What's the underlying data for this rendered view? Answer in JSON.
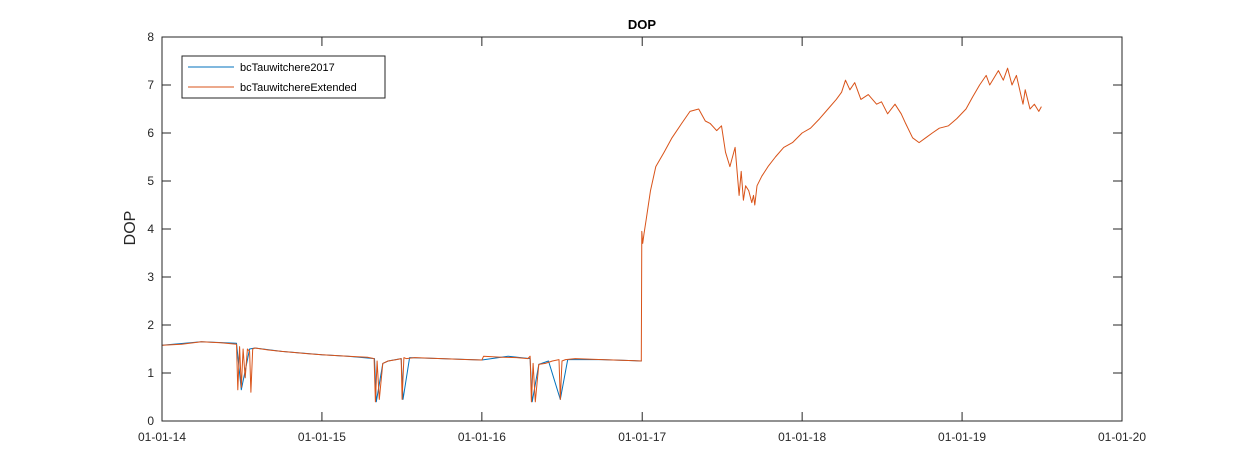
{
  "chart_data": {
    "type": "line",
    "title": "DOP",
    "xlabel": "",
    "ylabel": "DOP",
    "x_ticks": [
      "01-01-14",
      "01-01-15",
      "01-01-16",
      "01-01-17",
      "01-01-18",
      "01-01-19",
      "01-01-20"
    ],
    "xlim": [
      "01-01-14",
      "01-01-20"
    ],
    "ylim": [
      0,
      8
    ],
    "y_ticks": [
      "0",
      "1",
      "2",
      "3",
      "4",
      "5",
      "6",
      "7",
      "8"
    ],
    "grid": false,
    "legend_position": "top-left",
    "series": [
      {
        "name": "bcTauwitchere2017",
        "color": "#0072BD",
        "x": [
          "2014-01-01",
          "2014-04-01",
          "2014-06-20",
          "2014-07-01",
          "2014-07-20",
          "2014-08-01",
          "2014-10-01",
          "2015-01-01",
          "2015-03-01",
          "2015-05-01",
          "2015-05-05",
          "2015-05-20",
          "2015-06-01",
          "2015-07-01",
          "2015-07-05",
          "2015-07-20",
          "2015-10-01",
          "2016-01-01",
          "2016-03-01",
          "2016-04-20",
          "2016-04-25",
          "2016-05-10",
          "2016-06-01",
          "2016-06-28",
          "2016-07-15",
          "2016-10-01",
          "2016-12-31"
        ],
        "y": [
          1.58,
          1.65,
          1.62,
          0.65,
          1.5,
          1.52,
          1.45,
          1.38,
          1.35,
          1.3,
          0.4,
          1.2,
          1.25,
          1.3,
          0.45,
          1.32,
          1.3,
          1.27,
          1.35,
          1.3,
          0.4,
          1.18,
          1.25,
          0.45,
          1.28,
          1.28,
          1.25
        ]
      },
      {
        "name": "bcTauwitchereExtended",
        "color": "#D95319",
        "x": [
          "2014-01-01",
          "2014-02-15",
          "2014-04-01",
          "2014-05-15",
          "2014-06-20",
          "2014-06-23",
          "2014-06-27",
          "2014-07-01",
          "2014-07-05",
          "2014-07-10",
          "2014-07-15",
          "2014-07-20",
          "2014-07-23",
          "2014-07-27",
          "2014-08-01",
          "2014-09-01",
          "2014-10-01",
          "2014-12-01",
          "2015-01-01",
          "2015-03-01",
          "2015-04-15",
          "2015-04-30",
          "2015-05-03",
          "2015-05-07",
          "2015-05-12",
          "2015-05-20",
          "2015-06-01",
          "2015-06-20",
          "2015-07-01",
          "2015-07-03",
          "2015-07-07",
          "2015-07-12",
          "2015-08-01",
          "2015-10-01",
          "2015-12-01",
          "2016-01-01",
          "2016-01-05",
          "2016-02-15",
          "2016-03-20",
          "2016-04-15",
          "2016-04-20",
          "2016-04-23",
          "2016-04-27",
          "2016-05-02",
          "2016-05-10",
          "2016-05-25",
          "2016-06-10",
          "2016-06-25",
          "2016-06-28",
          "2016-07-02",
          "2016-07-10",
          "2016-08-01",
          "2016-10-01",
          "2016-12-01",
          "2016-12-30",
          "2016-12-31",
          "2017-01-02",
          "2017-01-05",
          "2017-01-10",
          "2017-01-20",
          "2017-02-01",
          "2017-02-20",
          "2017-03-10",
          "2017-04-01",
          "2017-04-20",
          "2017-05-10",
          "2017-05-25",
          "2017-06-05",
          "2017-06-20",
          "2017-07-01",
          "2017-07-10",
          "2017-07-20",
          "2017-08-01",
          "2017-08-10",
          "2017-08-15",
          "2017-08-20",
          "2017-08-25",
          "2017-09-01",
          "2017-09-08",
          "2017-09-12",
          "2017-09-15",
          "2017-09-20",
          "2017-10-01",
          "2017-10-15",
          "2017-11-01",
          "2017-11-20",
          "2017-12-10",
          "2018-01-01",
          "2018-01-20",
          "2018-02-10",
          "2018-03-01",
          "2018-03-20",
          "2018-04-01",
          "2018-04-10",
          "2018-04-20",
          "2018-05-01",
          "2018-05-15",
          "2018-06-01",
          "2018-06-20",
          "2018-07-01",
          "2018-07-15",
          "2018-08-01",
          "2018-08-15",
          "2018-08-25",
          "2018-09-10",
          "2018-09-25",
          "2018-10-10",
          "2018-10-25",
          "2018-11-10",
          "2018-12-01",
          "2018-12-20",
          "2019-01-10",
          "2019-01-25",
          "2019-02-10",
          "2019-02-25",
          "2019-03-05",
          "2019-03-15",
          "2019-03-25",
          "2019-04-05",
          "2019-04-15",
          "2019-04-25",
          "2019-05-05",
          "2019-05-15",
          "2019-05-20",
          "2019-05-25",
          "2019-06-05",
          "2019-06-15",
          "2019-06-25",
          "2019-07-01"
        ],
        "y": [
          1.58,
          1.6,
          1.65,
          1.63,
          1.6,
          0.65,
          1.55,
          0.7,
          1.5,
          0.9,
          1.5,
          1.45,
          0.6,
          1.5,
          1.52,
          1.48,
          1.45,
          1.4,
          1.38,
          1.35,
          1.33,
          1.3,
          0.4,
          1.25,
          0.45,
          1.2,
          1.25,
          1.28,
          1.3,
          0.45,
          1.32,
          1.3,
          1.32,
          1.3,
          1.28,
          1.27,
          1.35,
          1.33,
          1.32,
          1.3,
          1.35,
          0.4,
          1.2,
          0.4,
          1.18,
          1.2,
          1.25,
          1.28,
          0.45,
          1.25,
          1.28,
          1.3,
          1.28,
          1.26,
          1.25,
          3.95,
          3.7,
          3.9,
          4.2,
          4.8,
          5.3,
          5.6,
          5.9,
          6.2,
          6.45,
          6.5,
          6.25,
          6.2,
          6.05,
          6.15,
          5.6,
          5.3,
          5.7,
          4.7,
          5.2,
          4.6,
          4.9,
          4.8,
          4.55,
          4.7,
          4.5,
          4.9,
          5.1,
          5.3,
          5.5,
          5.7,
          5.8,
          6.0,
          6.1,
          6.3,
          6.5,
          6.7,
          6.85,
          7.1,
          6.9,
          7.05,
          6.7,
          6.8,
          6.6,
          6.65,
          6.4,
          6.6,
          6.4,
          6.2,
          5.9,
          5.8,
          5.9,
          6.0,
          6.1,
          6.15,
          6.3,
          6.5,
          6.75,
          7.0,
          7.2,
          7.0,
          7.15,
          7.3,
          7.1,
          7.35,
          7.0,
          7.2,
          6.8,
          6.6,
          6.9,
          6.5,
          6.6,
          6.45,
          6.55
        ]
      }
    ]
  }
}
